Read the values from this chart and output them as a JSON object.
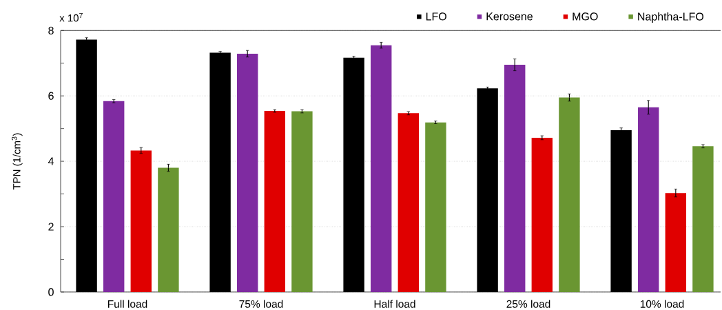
{
  "chart_data": {
    "type": "bar",
    "ylabel": "TPN (1/cm$^{3}$)",
    "annotations": [
      "x 10$^{7}$"
    ],
    "categories": [
      "Full load",
      "75% load",
      "Half load",
      "25% load",
      "10% load"
    ],
    "series": [
      {
        "name": "LFO",
        "color": "#000000",
        "values": [
          7.72,
          7.32,
          7.17,
          6.23,
          4.95
        ],
        "errors": [
          0.06,
          0.04,
          0.04,
          0.04,
          0.07
        ]
      },
      {
        "name": "Kerosene",
        "color": "#7f2ba1",
        "values": [
          5.84,
          7.29,
          7.55,
          6.95,
          5.65
        ],
        "errors": [
          0.05,
          0.1,
          0.09,
          0.18,
          0.21
        ]
      },
      {
        "name": "MGO",
        "color": "#e00000",
        "values": [
          4.33,
          5.54,
          5.47,
          4.72,
          3.03
        ],
        "errors": [
          0.09,
          0.04,
          0.05,
          0.06,
          0.12
        ]
      },
      {
        "name": "Naphtha-LFO",
        "color": "#6a9632",
        "values": [
          3.8,
          5.53,
          5.19,
          5.95,
          4.46
        ],
        "errors": [
          0.11,
          0.05,
          0.04,
          0.11,
          0.05
        ]
      }
    ],
    "ylim": [
      0,
      8
    ],
    "yticks": [
      0,
      {
        "value": 1,
        "label": null
      },
      2,
      {
        "value": 3,
        "label": null
      },
      4,
      {
        "value": 5,
        "label": null
      },
      6,
      {
        "value": 7,
        "label": null
      },
      8
    ],
    "grid": "y",
    "legend": "top right"
  }
}
